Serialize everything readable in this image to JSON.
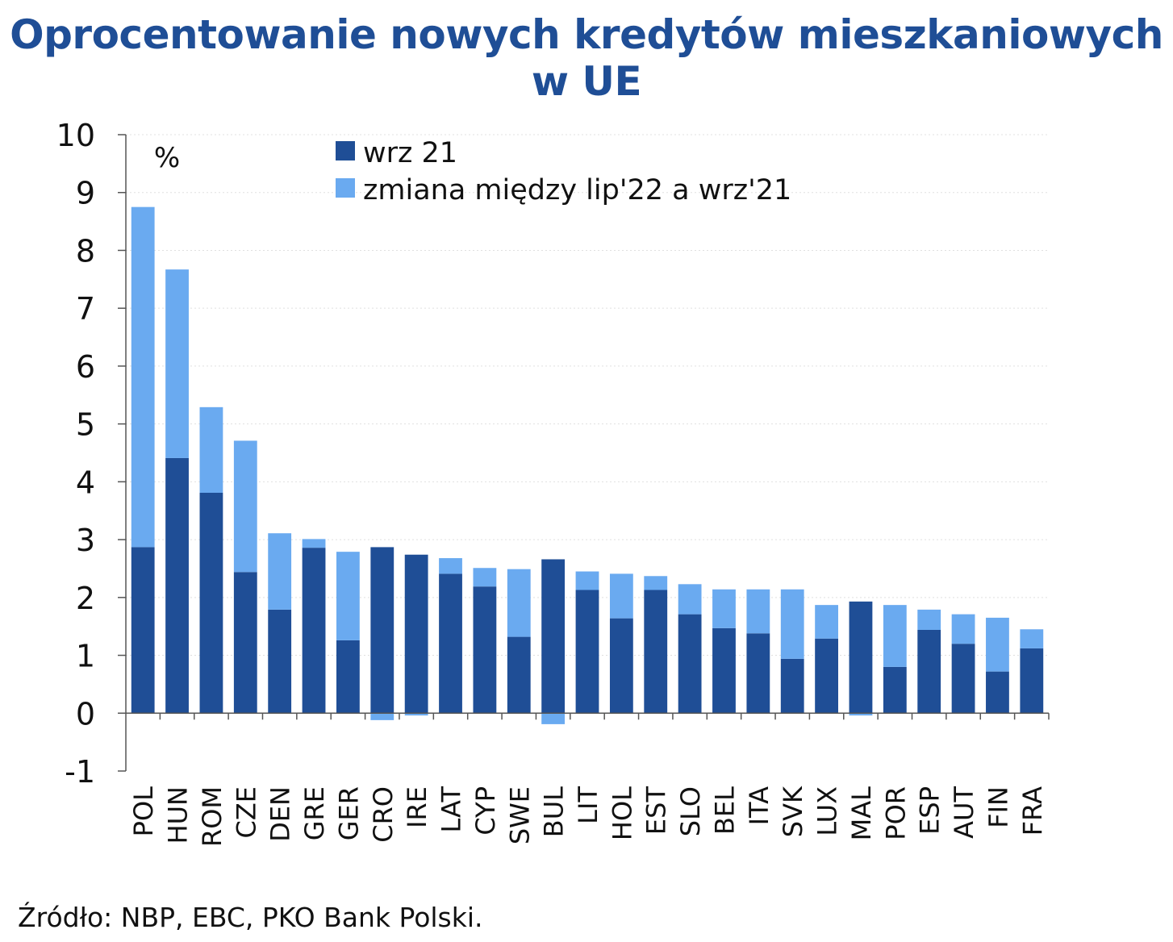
{
  "title": "Oprocentowanie nowych kredytów mieszkaniowych w UE",
  "source": "Źródło: NBP, EBC, PKO Bank Polski.",
  "colors": {
    "title": "#1f4e96",
    "base": "#1f4e96",
    "change": "#6aaaf0",
    "grid": "#e0e0e0"
  },
  "chart_data": {
    "type": "bar",
    "stacked": true,
    "unit_label": "%",
    "categories": [
      "POL",
      "HUN",
      "ROM",
      "CZE",
      "DEN",
      "GRE",
      "GER",
      "CRO",
      "IRE",
      "LAT",
      "CYP",
      "SWE",
      "BUL",
      "LIT",
      "HOL",
      "EST",
      "SLO",
      "BEL",
      "ITA",
      "SVK",
      "LUX",
      "MAL",
      "POR",
      "ESP",
      "AUT",
      "FIN",
      "FRA"
    ],
    "series": [
      {
        "name": "wrz 21",
        "color": "#1f4e96",
        "values": [
          2.87,
          4.41,
          3.81,
          2.44,
          1.79,
          2.86,
          1.26,
          2.87,
          2.74,
          2.41,
          2.19,
          1.32,
          2.66,
          2.13,
          1.64,
          2.13,
          1.71,
          1.47,
          1.38,
          0.94,
          1.29,
          1.93,
          0.8,
          1.44,
          1.2,
          0.72,
          1.12
        ]
      },
      {
        "name": "zmiana między lip'22 a wrz'21",
        "color": "#6aaaf0",
        "values": [
          5.88,
          3.26,
          1.48,
          2.27,
          1.32,
          0.15,
          1.53,
          -0.12,
          -0.04,
          0.27,
          0.32,
          1.17,
          -0.19,
          0.32,
          0.77,
          0.24,
          0.52,
          0.67,
          0.76,
          1.2,
          0.58,
          -0.04,
          1.07,
          0.35,
          0.51,
          0.93,
          0.33
        ]
      }
    ],
    "ylim": [
      -1,
      10
    ],
    "yticks": [
      -1,
      0,
      1,
      2,
      3,
      4,
      5,
      6,
      7,
      8,
      9,
      10
    ],
    "grid": true,
    "legend_position": "top-center"
  }
}
